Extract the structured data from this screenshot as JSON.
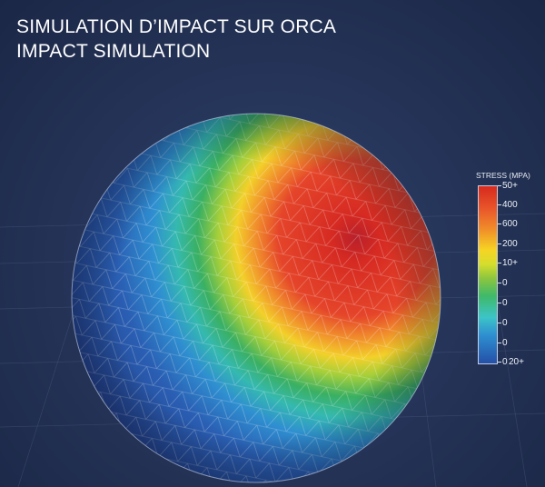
{
  "title": {
    "line1": "SIMULATION D’IMPACT SUR ORCA",
    "line2": "IMPACT SIMULATION"
  },
  "legend": {
    "title": "STRESS (MPA)",
    "ticks": [
      "50+",
      "400",
      "600",
      "200",
      "10+",
      "0",
      "0",
      "0",
      "0",
      "0"
    ],
    "extra": "20+",
    "colors": [
      "#d72a1e",
      "#f08c2a",
      "#f6d424",
      "#8cc63f",
      "#3fb96a",
      "#3cc4c8",
      "#2e8fd0",
      "#2450a8"
    ]
  }
}
